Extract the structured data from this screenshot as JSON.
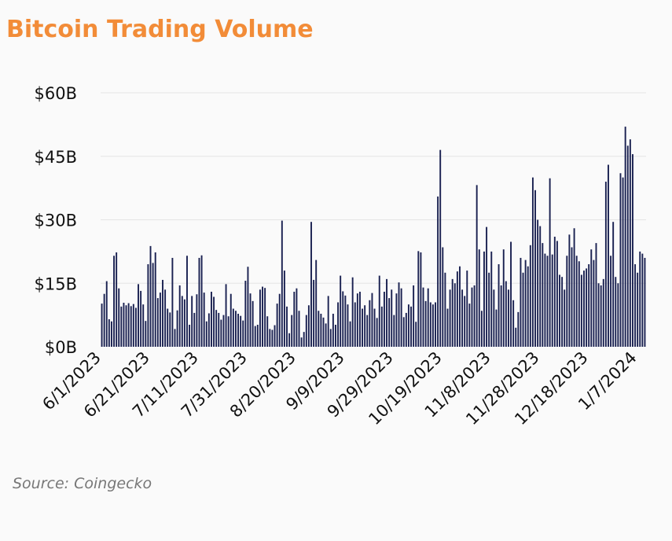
{
  "title": "Bitcoin Trading Volume",
  "source": "Source: Coingecko",
  "chart_data": {
    "type": "bar",
    "title": "Bitcoin Trading Volume",
    "xlabel": "",
    "ylabel": "",
    "ylim": [
      0,
      60
    ],
    "unit": "billion USD",
    "y_ticks": [
      "$0B",
      "$15B",
      "$30B",
      "$45B",
      "$60B"
    ],
    "y_tick_values": [
      0,
      15,
      30,
      45,
      60
    ],
    "x_tick_labels": [
      "6/1/2023",
      "6/21/2023",
      "7/11/2023",
      "7/31/2023",
      "8/20/2023",
      "9/9/2023",
      "9/29/2023",
      "10/19/2023",
      "11/8/2023",
      "11/28/2023",
      "12/18/2023",
      "1/7/2024"
    ],
    "x_start": "2023-06-01",
    "x_end": "2024-01-18",
    "grid": true,
    "bar_color": "#1a2151",
    "values": [
      10.2,
      12.5,
      15.5,
      6.5,
      6.0,
      21.5,
      22.3,
      13.8,
      9.5,
      10.4,
      9.8,
      10.3,
      9.6,
      10.1,
      9.2,
      14.8,
      13.2,
      10.0,
      6.1,
      19.5,
      23.8,
      19.8,
      22.3,
      11.5,
      12.8,
      15.8,
      13.5,
      9.0,
      8.1,
      21.0,
      4.2,
      8.6,
      14.5,
      12.0,
      11.2,
      21.5,
      5.2,
      12.0,
      8.0,
      12.4,
      21.0,
      21.6,
      12.8,
      6.0,
      7.9,
      13.0,
      11.8,
      8.7,
      8.0,
      6.4,
      7.5,
      14.8,
      7.2,
      12.5,
      9.0,
      8.5,
      7.8,
      7.3,
      6.2,
      15.6,
      18.9,
      12.6,
      10.8,
      4.9,
      5.2,
      13.5,
      14.2,
      13.9,
      7.2,
      4.2,
      4.0,
      5.1,
      10.2,
      12.5,
      29.8,
      18.0,
      9.5,
      3.2,
      7.5,
      13.0,
      13.8,
      8.5,
      2.2,
      3.5,
      7.5,
      9.8,
      29.5,
      15.8,
      20.5,
      8.5,
      7.8,
      6.9,
      5.5,
      12.0,
      4.2,
      7.8,
      5.2,
      10.5,
      16.8,
      13.1,
      12.1,
      10.0,
      6.0,
      16.4,
      10.5,
      12.6,
      13.0,
      9.0,
      9.8,
      7.5,
      11.0,
      12.7,
      9.0,
      6.8,
      16.8,
      9.5,
      13.0,
      16.0,
      11.5,
      13.5,
      7.5,
      12.6,
      15.2,
      13.8,
      7.0,
      8.0,
      10.0,
      9.5,
      14.5,
      5.9,
      22.6,
      22.3,
      14.0,
      10.8,
      13.8,
      10.5,
      10.0,
      10.5,
      35.5,
      46.5,
      23.5,
      17.5,
      9.0,
      13.5,
      16.0,
      15.0,
      17.8,
      19.0,
      13.5,
      12.0,
      18.0,
      10.2,
      14.0,
      14.5,
      38.2,
      23.0,
      8.5,
      22.5,
      28.3,
      17.5,
      22.5,
      13.5,
      8.8,
      19.5,
      14.5,
      23.0,
      15.5,
      13.5,
      24.8,
      11.0,
      4.5,
      8.2,
      21.0,
      17.5,
      20.5,
      19.0,
      24.0,
      40.0,
      37.0,
      30.0,
      28.5,
      24.5,
      22.0,
      21.5,
      39.8,
      21.8,
      26.0,
      25.0,
      17.0,
      16.5,
      13.5,
      21.5,
      26.5,
      23.5,
      28.0,
      21.5,
      20.2,
      17.0,
      18.0,
      18.5,
      19.5,
      23.0,
      20.5,
      24.5,
      15.0,
      14.5,
      16.0,
      39.0,
      43.0,
      21.5,
      29.5,
      16.5,
      15.0,
      41.0,
      40.0,
      52.0,
      47.5,
      49.0,
      45.5,
      19.5,
      17.5,
      22.5,
      22.0,
      21.0
    ]
  }
}
